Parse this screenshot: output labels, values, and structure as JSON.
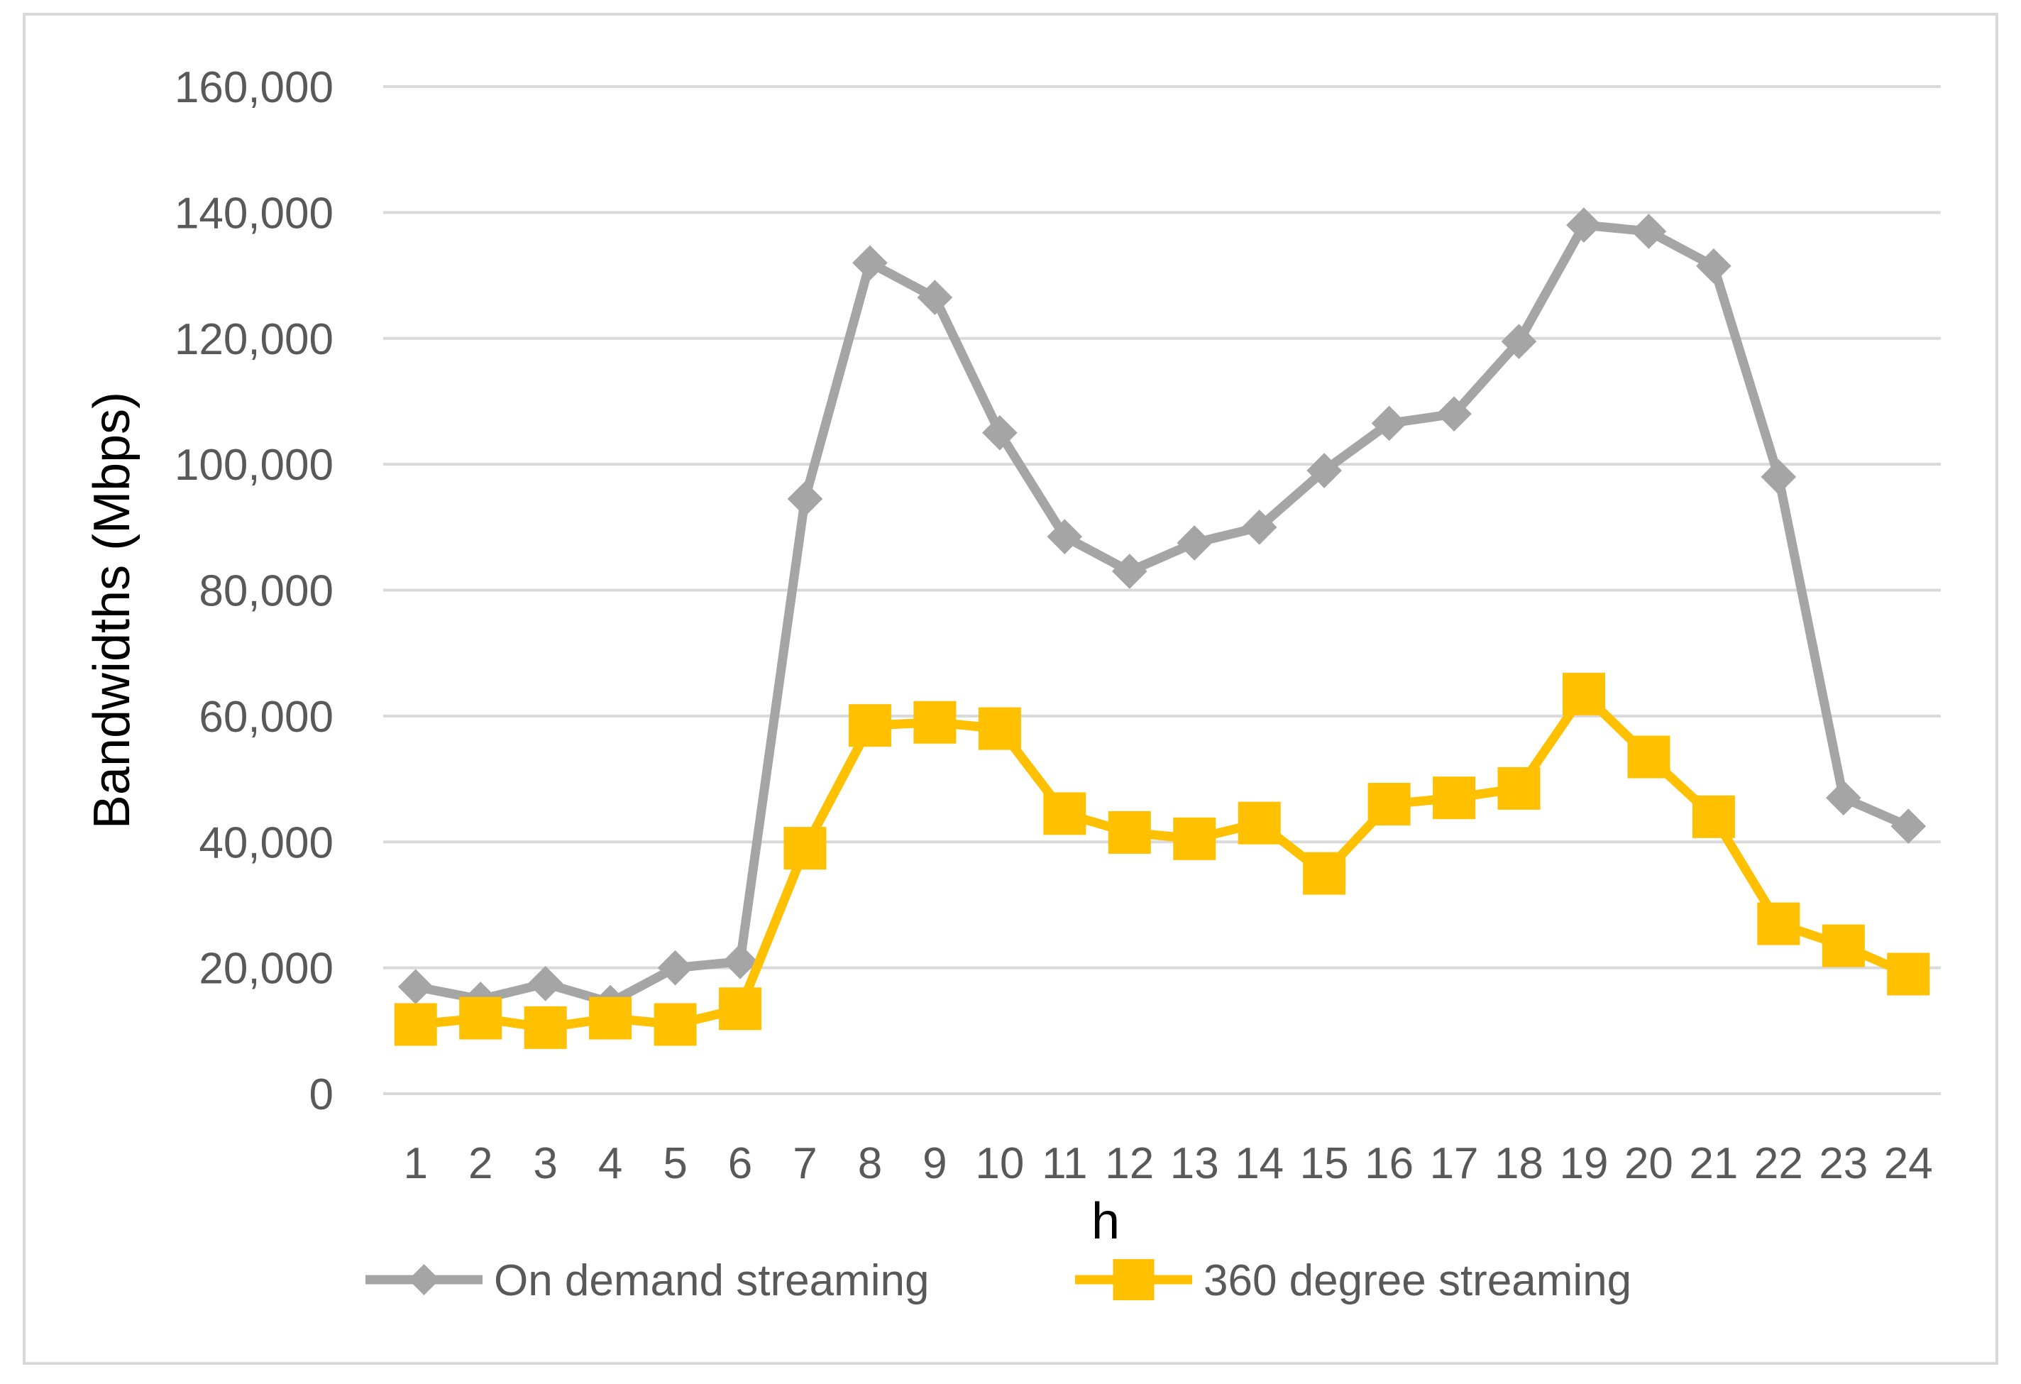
{
  "chart_data": {
    "type": "line",
    "title": "",
    "xlabel": "h",
    "ylabel": "Bandwidths (Mbps)",
    "ylim": [
      0,
      160000
    ],
    "y_ticks": [
      0,
      20000,
      40000,
      60000,
      80000,
      100000,
      120000,
      140000,
      160000
    ],
    "y_tick_labels": [
      "0",
      "20,000",
      "40,000",
      "60,000",
      "80,000",
      "100,000",
      "120,000",
      "140,000",
      "160,000"
    ],
    "categories": [
      "1",
      "2",
      "3",
      "4",
      "5",
      "6",
      "7",
      "8",
      "9",
      "10",
      "11",
      "12",
      "13",
      "14",
      "15",
      "16",
      "17",
      "18",
      "19",
      "20",
      "21",
      "22",
      "23",
      "24"
    ],
    "grid": true,
    "legend_position": "bottom",
    "series": [
      {
        "name": "On demand streaming",
        "color": "#a5a5a5",
        "marker": "diamond",
        "values": [
          17000,
          15000,
          17500,
          14500,
          20000,
          21000,
          94500,
          132000,
          126500,
          105000,
          88500,
          83000,
          87500,
          90000,
          99000,
          106500,
          108000,
          119500,
          138000,
          137000,
          131500,
          98000,
          47000,
          42500
        ]
      },
      {
        "name": "360 degree streaming",
        "color": "#ffc000",
        "marker": "square",
        "values": [
          11000,
          12000,
          10500,
          12000,
          11000,
          13500,
          39000,
          58500,
          59000,
          58000,
          44500,
          41500,
          40500,
          43000,
          35000,
          46000,
          47000,
          48500,
          63500,
          53500,
          44000,
          27000,
          23500,
          19000
        ]
      }
    ]
  }
}
